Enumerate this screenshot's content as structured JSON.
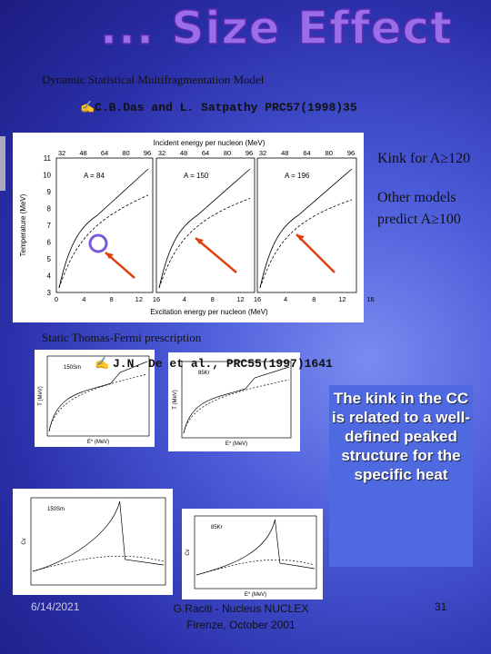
{
  "header": {
    "title": "... Size Effect"
  },
  "model": {
    "name": "Dynamic Statistical Multifragmentation Model",
    "reference": "C.B.Das and L. Satpathy PRC57(1998)35"
  },
  "figure1": {
    "top_axis_label": "Incident energy per nucleon (MeV)",
    "bottom_axis_label": "Excitation energy per nucleon (MeV)",
    "y_axis_label": "Temperature (MeV)",
    "y_ticks": [
      "3",
      "4",
      "5",
      "6",
      "7",
      "8",
      "9",
      "10",
      "11"
    ],
    "panels": [
      {
        "label": "A = 84",
        "top_ticks": [
          "32",
          "48",
          "64",
          "80",
          "96"
        ],
        "bottom_ticks": [
          "0",
          "4",
          "8",
          "12"
        ]
      },
      {
        "label": "A = 150",
        "top_ticks": [
          "32",
          "48",
          "64",
          "80",
          "96"
        ],
        "bottom_ticks": [
          "16",
          "4",
          "8",
          "12"
        ]
      },
      {
        "label": "A = 196",
        "top_ticks": [
          "32",
          "48",
          "64",
          "80",
          "96"
        ],
        "bottom_ticks": [
          "16",
          "4",
          "8",
          "12",
          "16"
        ]
      }
    ]
  },
  "notes": [
    "Kink for A≥120",
    "Other models predict A≥100"
  ],
  "prescription": {
    "name": "Static Thomas-Fermi prescription",
    "reference": "J.N. De et al., PRC55(1997)1641"
  },
  "figure2": {
    "panels": [
      {
        "label": "150Sm",
        "y_label": "T (MeV)",
        "x_label": "E* (MeV)"
      },
      {
        "label": "85Kr",
        "y_label": "T (MeV)",
        "x_label": "E* (MeV)"
      }
    ]
  },
  "figure3": {
    "panels": [
      {
        "label": "150Sm",
        "y_label": "Cv"
      },
      {
        "label": "85Kr",
        "y_label": "Cv",
        "x_label": "E* (MeV)"
      }
    ]
  },
  "callout": "The kink in the CC is related to a well-defined peaked structure for the specific heat",
  "footer": {
    "date": "6/14/2021",
    "author": "G.Raciti - Nucleus NUCLEX Firenze, October 2001",
    "page": "31"
  }
}
